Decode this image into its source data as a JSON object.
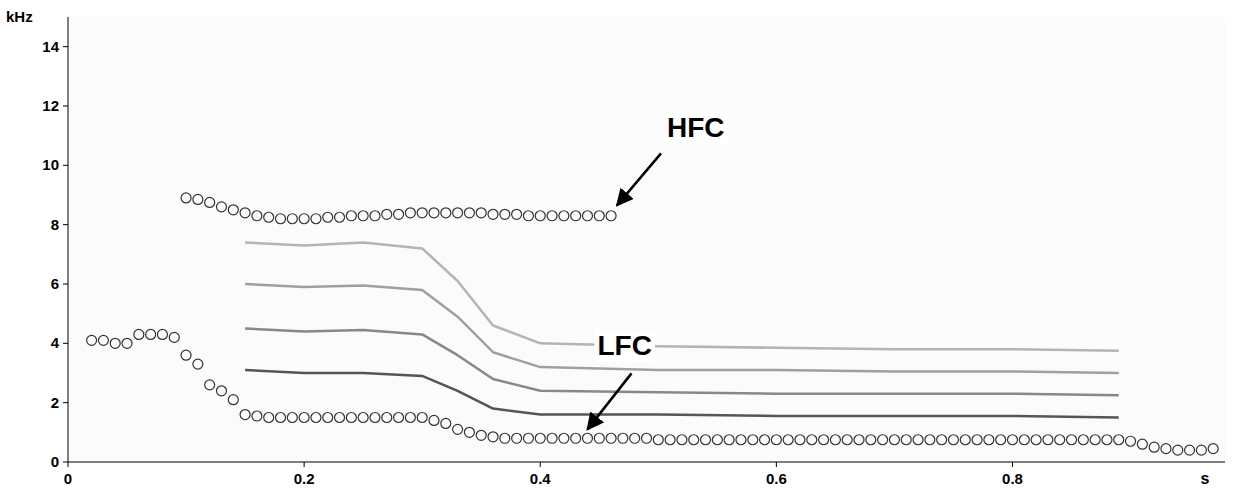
{
  "chart_data": {
    "type": "scatter",
    "x_label": "s",
    "y_label": "kHz",
    "xlim": [
      0,
      0.98
    ],
    "ylim": [
      0,
      15
    ],
    "xticks": [
      0,
      0.2,
      0.4,
      0.6,
      0.8
    ],
    "yticks": [
      0,
      2,
      4,
      6,
      8,
      10,
      12,
      14
    ],
    "grid": false,
    "series": [
      {
        "name": "HFC",
        "type": "scatter",
        "marker": "circle",
        "color": "#333333",
        "x": [
          0.1,
          0.11,
          0.12,
          0.13,
          0.14,
          0.15,
          0.16,
          0.17,
          0.18,
          0.19,
          0.2,
          0.21,
          0.22,
          0.23,
          0.24,
          0.25,
          0.26,
          0.27,
          0.28,
          0.29,
          0.3,
          0.31,
          0.32,
          0.33,
          0.34,
          0.35,
          0.36,
          0.37,
          0.38,
          0.39,
          0.4,
          0.41,
          0.42,
          0.43,
          0.44,
          0.45,
          0.46
        ],
        "values": [
          8.9,
          8.85,
          8.75,
          8.6,
          8.5,
          8.4,
          8.3,
          8.25,
          8.2,
          8.2,
          8.2,
          8.2,
          8.25,
          8.25,
          8.3,
          8.3,
          8.3,
          8.35,
          8.35,
          8.4,
          8.4,
          8.4,
          8.4,
          8.4,
          8.4,
          8.4,
          8.35,
          8.35,
          8.35,
          8.3,
          8.3,
          8.3,
          8.3,
          8.3,
          8.3,
          8.3,
          8.3
        ]
      },
      {
        "name": "LFC",
        "type": "scatter",
        "marker": "circle",
        "color": "#333333",
        "x": [
          0.02,
          0.03,
          0.04,
          0.05,
          0.06,
          0.07,
          0.08,
          0.09,
          0.1,
          0.11,
          0.12,
          0.13,
          0.14,
          0.15,
          0.16,
          0.17,
          0.18,
          0.19,
          0.2,
          0.21,
          0.22,
          0.23,
          0.24,
          0.25,
          0.26,
          0.27,
          0.28,
          0.29,
          0.3,
          0.31,
          0.32,
          0.33,
          0.34,
          0.35,
          0.36,
          0.37,
          0.38,
          0.39,
          0.4,
          0.41,
          0.42,
          0.43,
          0.44,
          0.45,
          0.46,
          0.47,
          0.48,
          0.49,
          0.5,
          0.51,
          0.52,
          0.53,
          0.54,
          0.55,
          0.56,
          0.57,
          0.58,
          0.59,
          0.6,
          0.61,
          0.62,
          0.63,
          0.64,
          0.65,
          0.66,
          0.67,
          0.68,
          0.69,
          0.7,
          0.71,
          0.72,
          0.73,
          0.74,
          0.75,
          0.76,
          0.77,
          0.78,
          0.79,
          0.8,
          0.81,
          0.82,
          0.83,
          0.84,
          0.85,
          0.86,
          0.87,
          0.88,
          0.89,
          0.9,
          0.91,
          0.92,
          0.93,
          0.94,
          0.95,
          0.96,
          0.97
        ],
        "values": [
          4.1,
          4.1,
          4.0,
          4.0,
          4.3,
          4.3,
          4.3,
          4.2,
          3.6,
          3.3,
          2.6,
          2.4,
          2.1,
          1.6,
          1.55,
          1.5,
          1.5,
          1.5,
          1.5,
          1.5,
          1.5,
          1.5,
          1.5,
          1.5,
          1.5,
          1.5,
          1.5,
          1.5,
          1.5,
          1.4,
          1.3,
          1.1,
          1.0,
          0.9,
          0.85,
          0.8,
          0.8,
          0.8,
          0.8,
          0.8,
          0.8,
          0.8,
          0.8,
          0.8,
          0.8,
          0.8,
          0.8,
          0.8,
          0.75,
          0.75,
          0.75,
          0.75,
          0.75,
          0.75,
          0.75,
          0.75,
          0.75,
          0.75,
          0.75,
          0.75,
          0.75,
          0.75,
          0.75,
          0.75,
          0.75,
          0.75,
          0.75,
          0.75,
          0.75,
          0.75,
          0.75,
          0.75,
          0.75,
          0.75,
          0.75,
          0.75,
          0.75,
          0.75,
          0.75,
          0.75,
          0.75,
          0.75,
          0.75,
          0.75,
          0.75,
          0.75,
          0.75,
          0.75,
          0.7,
          0.6,
          0.5,
          0.45,
          0.4,
          0.4,
          0.4,
          0.45
        ]
      },
      {
        "type": "line",
        "color": "#555555",
        "x": [
          0.15,
          0.2,
          0.25,
          0.3,
          0.33,
          0.36,
          0.4,
          0.5,
          0.6,
          0.7,
          0.8,
          0.89
        ],
        "values": [
          3.1,
          3.0,
          3.0,
          2.9,
          2.4,
          1.8,
          1.6,
          1.6,
          1.55,
          1.55,
          1.55,
          1.5
        ]
      },
      {
        "type": "line",
        "color": "#888888",
        "x": [
          0.15,
          0.2,
          0.25,
          0.3,
          0.33,
          0.36,
          0.4,
          0.5,
          0.6,
          0.7,
          0.8,
          0.89
        ],
        "values": [
          4.5,
          4.4,
          4.45,
          4.3,
          3.6,
          2.8,
          2.4,
          2.35,
          2.3,
          2.3,
          2.3,
          2.25
        ]
      },
      {
        "type": "line",
        "color": "#a0a0a0",
        "x": [
          0.15,
          0.2,
          0.25,
          0.3,
          0.33,
          0.36,
          0.4,
          0.5,
          0.6,
          0.7,
          0.8,
          0.89
        ],
        "values": [
          6.0,
          5.9,
          5.95,
          5.8,
          4.9,
          3.7,
          3.2,
          3.1,
          3.1,
          3.05,
          3.05,
          3.0
        ]
      },
      {
        "type": "line",
        "color": "#b4b4b4",
        "x": [
          0.15,
          0.2,
          0.25,
          0.3,
          0.33,
          0.36,
          0.4,
          0.5,
          0.6,
          0.7,
          0.8,
          0.89
        ],
        "values": [
          7.4,
          7.3,
          7.4,
          7.2,
          6.1,
          4.6,
          4.0,
          3.9,
          3.85,
          3.8,
          3.8,
          3.75
        ]
      }
    ],
    "annotations": [
      {
        "text": "HFC",
        "x": 0.465,
        "y": 8.65
      },
      {
        "text": "LFC",
        "x": 0.44,
        "y": 1.1
      }
    ]
  }
}
